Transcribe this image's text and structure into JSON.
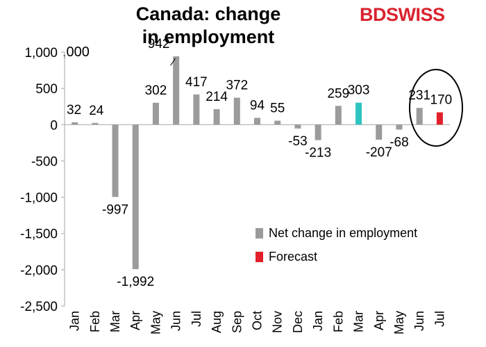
{
  "title_line1": "Canada: change",
  "title_line2": "in employment",
  "logo": {
    "part1": "BD",
    "part2": "SWISS",
    "color": "#d9232e"
  },
  "unit_label": ",000",
  "colors": {
    "bar": "#9b9b9b",
    "highlight": "#2ec4c0",
    "forecast": "#e2202b",
    "axis": "#a6a6a6"
  },
  "legend": [
    {
      "label": "Net change in employment",
      "color": "#9b9b9b"
    },
    {
      "label": "Forecast",
      "color": "#e2202b"
    }
  ],
  "chart_data": {
    "type": "bar",
    "categories": [
      "Jan",
      "Feb",
      "Mar",
      "Apr",
      "May",
      "Jun",
      "Jul",
      "Aug",
      "Sep",
      "Oct",
      "Nov",
      "Dec",
      "Jan",
      "Feb",
      "Mar",
      "Apr",
      "May",
      "Jun",
      "Jul"
    ],
    "values": [
      32,
      24,
      -997,
      -1992,
      302,
      942,
      417,
      214,
      372,
      94,
      55,
      -53,
      -213,
      259,
      303,
      -207,
      -68,
      231,
      170
    ],
    "labels": [
      "32",
      "24",
      "-997",
      "-1,992",
      "302",
      "942",
      "417",
      "214",
      "372",
      "94",
      "55",
      "-53",
      "-213",
      "259",
      "303",
      "-207",
      "-68",
      "231",
      "170"
    ],
    "highlight_index": 14,
    "forecast_index": 18,
    "ylim": [
      -2500,
      1000
    ],
    "yticks": [
      1000,
      500,
      0,
      -500,
      -1000,
      -1500,
      -2000,
      -2500
    ],
    "ytick_labels": [
      "1,000",
      "500",
      "0",
      "-500",
      "-1,000",
      "-1,500",
      "-2,000",
      "-2,500"
    ],
    "series_name": "Net change in employment",
    "grid": false,
    "legend_position": "bottom-right"
  }
}
